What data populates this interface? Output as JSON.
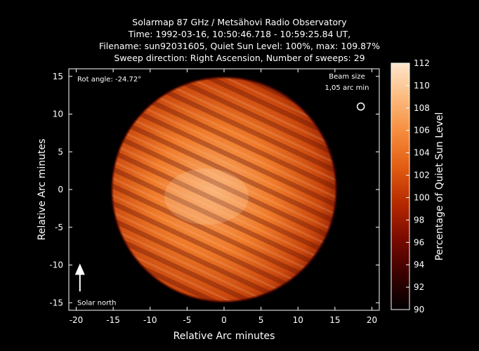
{
  "chart_data": {
    "type": "heatmap",
    "title_lines": [
      "Solarmap 87 GHz / Metsähovi Radio Observatory",
      "Time: 1992-03-16, 10:50:46.718 - 10:59:25.84 UT,",
      "Filename: sun92031605, Quiet Sun Level: 100%, max: 109.87%",
      "Sweep direction: Right Ascension, Number of sweeps: 29"
    ],
    "xlabel": "Relative Arc minutes",
    "ylabel": "Relative Arc minutes",
    "xlim": [
      -21,
      21
    ],
    "ylim": [
      -16,
      16
    ],
    "x_ticks": [
      -20,
      -15,
      -10,
      -5,
      0,
      5,
      10,
      15,
      20
    ],
    "y_ticks": [
      -15,
      -10,
      -5,
      0,
      5,
      10,
      15
    ],
    "colorbar": {
      "label": "Percentage of Quiet Sun Level",
      "range": [
        90,
        112
      ],
      "ticks": [
        90,
        92,
        94,
        96,
        98,
        100,
        102,
        104,
        106,
        108,
        110,
        112
      ],
      "colormap": [
        "#000000",
        "#3a0000",
        "#7a0a00",
        "#b52800",
        "#e05a10",
        "#f58a3a",
        "#fbb97c",
        "#ffe6cc"
      ]
    },
    "disk": {
      "center": [
        0,
        0
      ],
      "radius_arcmin": 15.2,
      "mean_level": 101,
      "max_level": 109.87,
      "sweep_count": 29
    },
    "annotations": {
      "rot_angle": "Rot angle: -24.72°",
      "beam_size_line1": "Beam size",
      "beam_size_line2": "1,05 arc min",
      "solar_north": "Solar north"
    }
  }
}
